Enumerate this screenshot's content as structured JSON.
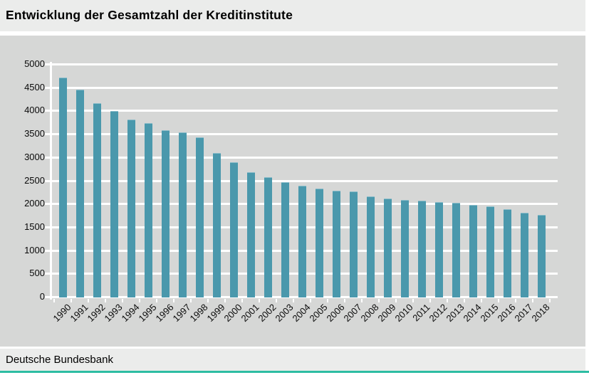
{
  "title": "Entwicklung der Gesamtzahl der Kreditinstitute",
  "footer": {
    "source": "Deutsche Bundesbank"
  },
  "colors": {
    "bar": "#4a98ac",
    "panel_background": "#d6d7d6",
    "band_background": "#ebeceb",
    "gridline": "#ffffff",
    "accent_line": "#2dbda3",
    "text": "#000000"
  },
  "chart_data": {
    "type": "bar",
    "title": "Entwicklung der Gesamtzahl der Kreditinstitute",
    "source": "Deutsche Bundesbank",
    "categories": [
      "1990",
      "1991",
      "1992",
      "1993",
      "1994",
      "1995",
      "1996",
      "1997",
      "1998",
      "1999",
      "2000",
      "2001",
      "2002",
      "2003",
      "2004",
      "2005",
      "2006",
      "2007",
      "2008",
      "2009",
      "2010",
      "2011",
      "2012",
      "2013",
      "2014",
      "2015",
      "2016",
      "2017",
      "2018"
    ],
    "values": [
      4720,
      4460,
      4170,
      4000,
      3820,
      3750,
      3600,
      3540,
      3440,
      3100,
      2910,
      2690,
      2590,
      2470,
      2400,
      2340,
      2300,
      2280,
      2170,
      2120,
      2090,
      2080,
      2050,
      2030,
      1990,
      1960,
      1890,
      1820,
      1780
    ],
    "xlabel": "",
    "ylabel": "",
    "ylim": [
      0,
      5000
    ],
    "ytick_step": 500,
    "grid": "horizontal",
    "legend": "none",
    "xlabel_rotation_deg": -45
  }
}
